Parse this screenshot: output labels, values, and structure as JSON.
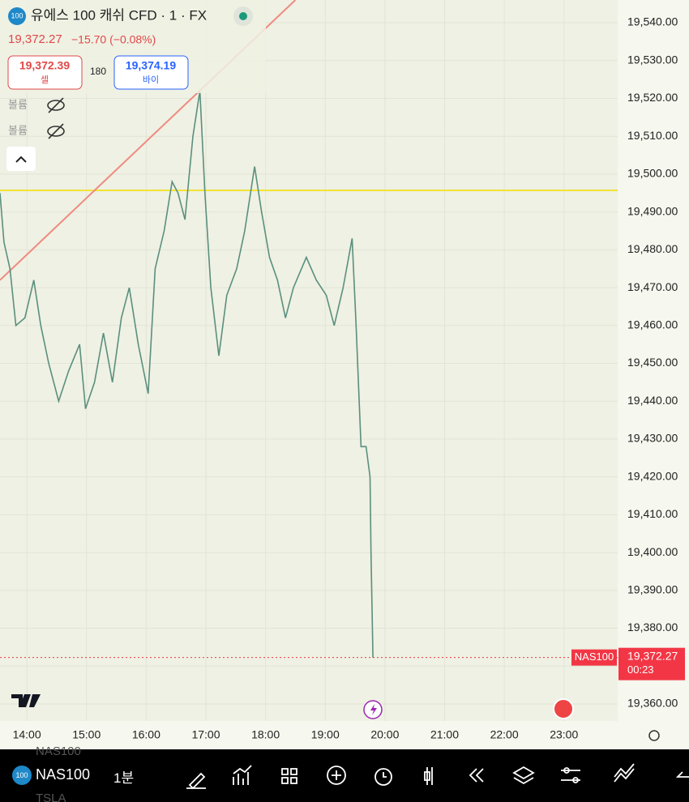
{
  "header": {
    "title": "유에스 100 캐쉬 CFD · 1 · FX",
    "price": "19,372.27",
    "change": "−15.70 (−0.08%)",
    "sell_price": "19,372.39",
    "sell_label": "셀",
    "spread": "180",
    "buy_price": "19,374.19",
    "buy_label": "바이",
    "volume_1": "볼륨",
    "volume_2": "볼륨"
  },
  "toolbar": {
    "symbol": "NAS100",
    "interval": "1분",
    "ghost_above": "NAS100",
    "ghost_below": "TSLA"
  },
  "chart_data": {
    "type": "line",
    "series": [
      {
        "name": "NAS100",
        "color": "#5b8f7f",
        "x": [
          "13:33",
          "13:37",
          "13:43",
          "13:49",
          "13:58",
          "14:07",
          "14:14",
          "14:22",
          "14:32",
          "14:42",
          "14:53",
          "14:59",
          "15:08",
          "15:17",
          "15:26",
          "15:35",
          "15:43",
          "15:52",
          "16:02",
          "16:09",
          "16:18",
          "16:26",
          "16:32",
          "16:39",
          "16:47",
          "16:54",
          "16:59",
          "17:05",
          "17:13",
          "17:21",
          "17:31",
          "17:39",
          "17:49",
          "17:56",
          "18:04",
          "18:12",
          "18:20",
          "18:28",
          "18:41",
          "18:51",
          "19:01",
          "19:09",
          "19:18",
          "19:27",
          "19:31",
          "19:36",
          "19:41",
          "19:45",
          "19:46",
          "19:48"
        ],
        "values": [
          19495,
          19482,
          19475,
          19460,
          19462,
          19472,
          19460,
          19450,
          19440,
          19448,
          19455,
          19438,
          19445,
          19458,
          19445,
          19462,
          19470,
          19455,
          19442,
          19475,
          19485,
          19498,
          19495,
          19488,
          19510,
          19522,
          19495,
          19470,
          19452,
          19468,
          19475,
          19485,
          19502,
          19490,
          19478,
          19472,
          19462,
          19470,
          19478,
          19472,
          19468,
          19460,
          19470,
          19483,
          19460,
          19428,
          19428,
          19420,
          19400,
          19372.27
        ]
      }
    ],
    "horizontal_line": {
      "value": 19495.7,
      "color": "#f2e234"
    },
    "trend_line": {
      "x": [
        "13:33",
        "18:30"
      ],
      "values": [
        19472,
        19546
      ],
      "color": "#f08a80"
    },
    "last_price": {
      "value": 19372.27,
      "label": "19,372.27",
      "symbol": "NAS100",
      "countdown": "00:23",
      "color": "#f23645"
    },
    "xlim": [
      "13:33",
      "23:54"
    ],
    "xticks": [
      "14:00",
      "15:00",
      "16:00",
      "17:00",
      "18:00",
      "19:00",
      "20:00",
      "21:00",
      "22:00",
      "23:00"
    ],
    "ylim": [
      19355.5,
      19546
    ],
    "yticks": [
      {
        "value": 19360,
        "label": "19,360.00"
      },
      {
        "value": 19370,
        "label": "19,370.00"
      },
      {
        "value": 19380,
        "label": "19,380.00"
      },
      {
        "value": 19390,
        "label": "19,390.00"
      },
      {
        "value": 19400,
        "label": "19,400.00"
      },
      {
        "value": 19410,
        "label": "19,410.00"
      },
      {
        "value": 19420,
        "label": "19,420.00"
      },
      {
        "value": 19430,
        "label": "19,430.00"
      },
      {
        "value": 19440,
        "label": "19,440.00"
      },
      {
        "value": 19450,
        "label": "19,450.00"
      },
      {
        "value": 19460,
        "label": "19,460.00"
      },
      {
        "value": 19470,
        "label": "19,470.00"
      },
      {
        "value": 19480,
        "label": "19,480.00"
      },
      {
        "value": 19490,
        "label": "19,490.00"
      },
      {
        "value": 19500,
        "label": "19,500.00"
      },
      {
        "value": 19510,
        "label": "19,510.00"
      },
      {
        "value": 19520,
        "label": "19,520.00"
      },
      {
        "value": 19530,
        "label": "19,530.00"
      },
      {
        "value": 19540,
        "label": "19,540.00"
      }
    ],
    "grid": true
  }
}
